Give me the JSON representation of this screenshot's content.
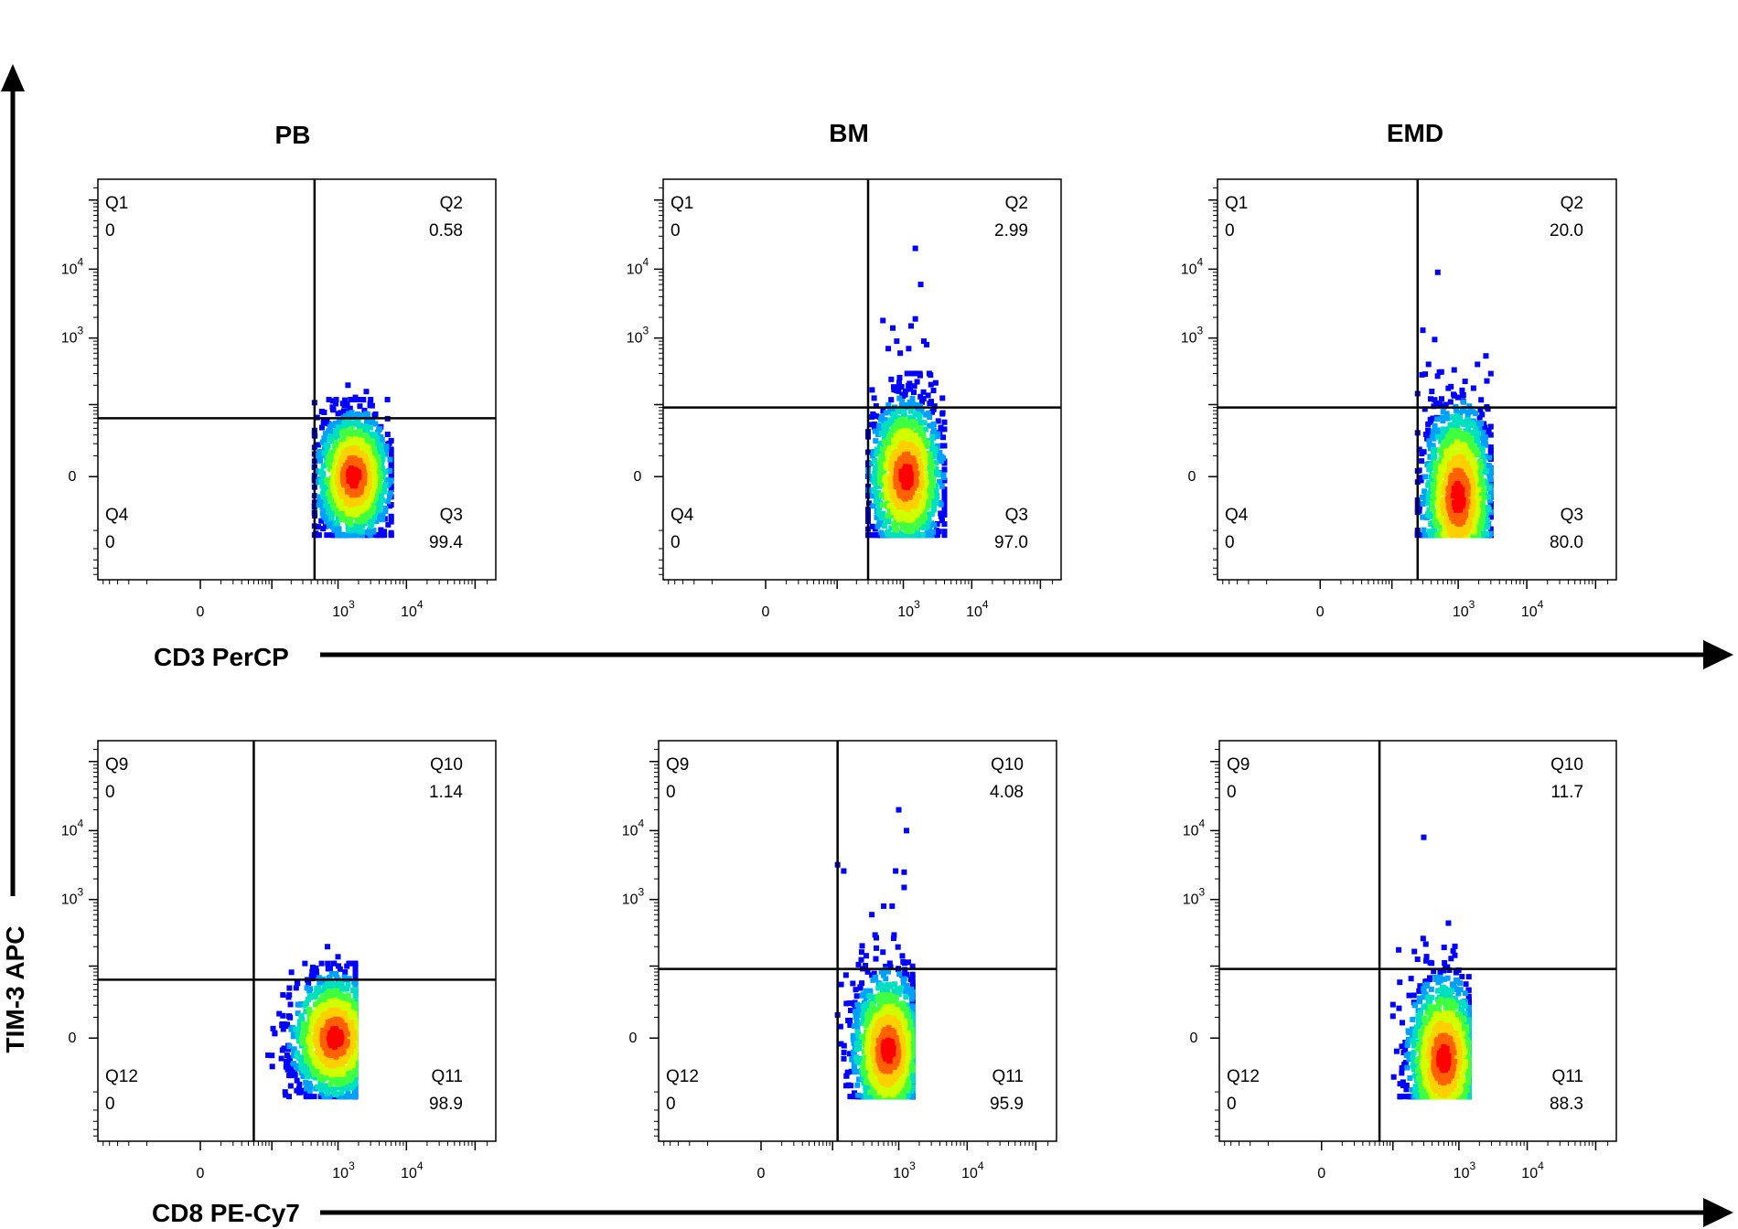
{
  "figure": {
    "y_axis_title": "TIM-3 APC",
    "row_x_titles": [
      "CD3 PerCP",
      "CD8 PE-Cy7"
    ],
    "column_headers": [
      "PB",
      "BM",
      "EMD"
    ],
    "colormap": [
      "#0000ff",
      "#00a0ff",
      "#00e0c0",
      "#40ff40",
      "#d0ff00",
      "#ffd000",
      "#ff6000",
      "#ff0000"
    ],
    "axis_color": "#000000"
  },
  "chart_data": [
    {
      "type": "scatter",
      "panel": "PB / CD3",
      "x_axis": "CD3 PerCP",
      "y_axis": "TIM-3 APC",
      "scale": "biexponential",
      "x_tick_labels": [
        "0",
        "10^3",
        "10^4"
      ],
      "y_tick_labels": [
        "0",
        "10^3",
        "10^4"
      ],
      "gate": {
        "x": 450,
        "y": 60
      },
      "quadrants": {
        "top_left": {
          "name": "Q1",
          "pct": "0"
        },
        "top_right": {
          "name": "Q2",
          "pct": "0.58"
        },
        "bottom_right": {
          "name": "Q3",
          "pct": "99.4"
        },
        "bottom_left": {
          "name": "Q4",
          "pct": "0"
        }
      },
      "population": {
        "center": [
          1700,
          0
        ],
        "x_range": [
          450,
          6000
        ],
        "y_range": [
          -60,
          120
        ]
      },
      "sparse_events": [
        [
          1800,
          130
        ],
        [
          1400,
          200
        ],
        [
          2600,
          160
        ]
      ]
    },
    {
      "type": "scatter",
      "panel": "BM / CD3",
      "x_axis": "CD3 PerCP",
      "y_axis": "TIM-3 APC",
      "scale": "biexponential",
      "x_tick_labels": [
        "0",
        "10^3",
        "10^4"
      ],
      "y_tick_labels": [
        "0",
        "10^3",
        "10^4"
      ],
      "gate": {
        "x": 300,
        "y": 90
      },
      "quadrants": {
        "top_left": {
          "name": "Q1",
          "pct": "0"
        },
        "top_right": {
          "name": "Q2",
          "pct": "2.99"
        },
        "bottom_right": {
          "name": "Q3",
          "pct": "97.0"
        },
        "bottom_left": {
          "name": "Q4",
          "pct": "0"
        }
      },
      "population": {
        "center": [
          1100,
          0
        ],
        "x_range": [
          300,
          4000
        ],
        "y_range": [
          -60,
          300
        ]
      },
      "sparse_events": [
        [
          1500,
          20000
        ],
        [
          1800,
          6000
        ],
        [
          500,
          1800
        ],
        [
          700,
          1400
        ],
        [
          1300,
          1500
        ],
        [
          1500,
          1900
        ],
        [
          800,
          900
        ],
        [
          900,
          600
        ],
        [
          2000,
          900
        ],
        [
          2200,
          800
        ],
        [
          600,
          700
        ],
        [
          1200,
          700
        ]
      ]
    },
    {
      "type": "scatter",
      "panel": "EMD / CD3",
      "x_axis": "CD3 PerCP",
      "y_axis": "TIM-3 APC",
      "scale": "biexponential",
      "x_tick_labels": [
        "0",
        "10^3",
        "10^4"
      ],
      "y_tick_labels": [
        "0",
        "10^3",
        "10^4"
      ],
      "gate": {
        "x": 250,
        "y": 90
      },
      "quadrants": {
        "top_left": {
          "name": "Q1",
          "pct": "0"
        },
        "top_right": {
          "name": "Q2",
          "pct": "20.0"
        },
        "bottom_right": {
          "name": "Q3",
          "pct": "80.0"
        },
        "bottom_left": {
          "name": "Q4",
          "pct": "0"
        }
      },
      "population": {
        "center": [
          1000,
          -10
        ],
        "x_range": [
          250,
          3000
        ],
        "y_range": [
          -60,
          900
        ]
      },
      "sparse_events": [
        [
          500,
          9000
        ],
        [
          300,
          1300
        ],
        [
          450,
          950
        ]
      ]
    },
    {
      "type": "scatter",
      "panel": "PB / CD8",
      "x_axis": "CD8 PE-Cy7",
      "y_axis": "TIM-3 APC",
      "scale": "biexponential",
      "x_tick_labels": [
        "0",
        "10^3",
        "10^4"
      ],
      "y_tick_labels": [
        "0",
        "10^3",
        "10^4"
      ],
      "gate": {
        "x": 50,
        "y": 60
      },
      "quadrants": {
        "top_left": {
          "name": "Q9",
          "pct": "0"
        },
        "top_right": {
          "name": "Q10",
          "pct": "1.14"
        },
        "bottom_right": {
          "name": "Q11",
          "pct": "98.9"
        },
        "bottom_left": {
          "name": "Q12",
          "pct": "0"
        }
      },
      "population": {
        "center": [
          900,
          0
        ],
        "x_range": [
          70,
          1800
        ],
        "y_range": [
          -60,
          110
        ]
      },
      "sparse_events": [
        [
          700,
          200
        ],
        [
          1000,
          140
        ]
      ]
    },
    {
      "type": "scatter",
      "panel": "BM / CD8",
      "x_axis": "CD8 PE-Cy7",
      "y_axis": "TIM-3 APC",
      "scale": "biexponential",
      "x_tick_labels": [
        "0",
        "10^3",
        "10^4"
      ],
      "y_tick_labels": [
        "0",
        "10^3",
        "10^4"
      ],
      "gate": {
        "x": 120,
        "y": 90
      },
      "quadrants": {
        "top_left": {
          "name": "Q9",
          "pct": "0"
        },
        "top_right": {
          "name": "Q10",
          "pct": "4.08"
        },
        "bottom_right": {
          "name": "Q11",
          "pct": "95.9"
        },
        "bottom_left": {
          "name": "Q12",
          "pct": "0"
        }
      },
      "population": {
        "center": [
          700,
          -5
        ],
        "x_range": [
          120,
          1600
        ],
        "y_range": [
          -60,
          300
        ]
      },
      "sparse_events": [
        [
          1000,
          20000
        ],
        [
          1300,
          10000
        ],
        [
          120,
          3200
        ],
        [
          150,
          2600
        ],
        [
          900,
          2600
        ],
        [
          1200,
          2500
        ],
        [
          1200,
          1500
        ],
        [
          600,
          800
        ],
        [
          800,
          800
        ],
        [
          400,
          600
        ]
      ]
    },
    {
      "type": "scatter",
      "panel": "EMD / CD8",
      "x_axis": "CD8 PE-Cy7",
      "y_axis": "TIM-3 APC",
      "scale": "biexponential",
      "x_tick_labels": [
        "0",
        "10^3",
        "10^4"
      ],
      "y_tick_labels": [
        "0",
        "10^3",
        "10^4"
      ],
      "gate": {
        "x": 60,
        "y": 90
      },
      "quadrants": {
        "top_left": {
          "name": "Q9",
          "pct": "0"
        },
        "top_right": {
          "name": "Q10",
          "pct": "11.7"
        },
        "bottom_right": {
          "name": "Q11",
          "pct": "88.3"
        },
        "bottom_left": {
          "name": "Q12",
          "pct": "0"
        }
      },
      "population": {
        "center": [
          600,
          -10
        ],
        "x_range": [
          100,
          1400
        ],
        "y_range": [
          -60,
          400
        ]
      },
      "sparse_events": [
        [
          300,
          8000
        ],
        [
          700,
          450
        ]
      ]
    }
  ]
}
